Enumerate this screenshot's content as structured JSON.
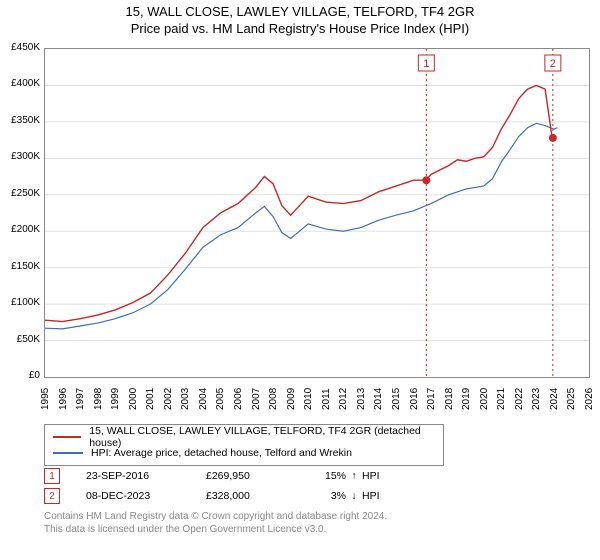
{
  "title_line1": "15, WALL CLOSE, LAWLEY VILLAGE, TELFORD, TF4 2GR",
  "title_line2": "Price paid vs. HM Land Registry's House Price Index (HPI)",
  "chart": {
    "type": "line",
    "background_color": "#ffffff",
    "grid_color": "#e0e0e0",
    "border_color": "#888888",
    "x_years": [
      1995,
      1996,
      1997,
      1998,
      1999,
      2000,
      2001,
      2002,
      2003,
      2004,
      2005,
      2006,
      2007,
      2008,
      2009,
      2010,
      2011,
      2012,
      2013,
      2014,
      2015,
      2016,
      2017,
      2018,
      2019,
      2020,
      2021,
      2022,
      2023,
      2024,
      2025,
      2026
    ],
    "ylim": [
      0,
      450000
    ],
    "ytick_step": 50000,
    "ytick_labels": [
      "£0",
      "£50K",
      "£100K",
      "£150K",
      "£200K",
      "£250K",
      "£300K",
      "£350K",
      "£400K",
      "£450K"
    ],
    "series": [
      {
        "name": "property",
        "label": "15, WALL CLOSE, LAWLEY VILLAGE, TELFORD, TF4 2GR (detached house)",
        "color": "#c62828",
        "line_width": 1.4,
        "points": [
          [
            1995,
            78000
          ],
          [
            1996,
            76000
          ],
          [
            1997,
            80000
          ],
          [
            1998,
            85000
          ],
          [
            1999,
            92000
          ],
          [
            2000,
            102000
          ],
          [
            2001,
            115000
          ],
          [
            2002,
            140000
          ],
          [
            2003,
            170000
          ],
          [
            2004,
            205000
          ],
          [
            2005,
            225000
          ],
          [
            2006,
            238000
          ],
          [
            2007,
            260000
          ],
          [
            2007.5,
            275000
          ],
          [
            2008,
            265000
          ],
          [
            2008.5,
            235000
          ],
          [
            2009,
            222000
          ],
          [
            2009.5,
            235000
          ],
          [
            2010,
            248000
          ],
          [
            2011,
            240000
          ],
          [
            2012,
            238000
          ],
          [
            2013,
            242000
          ],
          [
            2014,
            254000
          ],
          [
            2015,
            262000
          ],
          [
            2016,
            270000
          ],
          [
            2016.7,
            269950
          ],
          [
            2017,
            278000
          ],
          [
            2018,
            290000
          ],
          [
            2018.5,
            298000
          ],
          [
            2019,
            296000
          ],
          [
            2019.5,
            300000
          ],
          [
            2020,
            302000
          ],
          [
            2020.5,
            315000
          ],
          [
            2021,
            340000
          ],
          [
            2021.5,
            360000
          ],
          [
            2022,
            382000
          ],
          [
            2022.5,
            395000
          ],
          [
            2023,
            400000
          ],
          [
            2023.5,
            395000
          ],
          [
            2023.9,
            328000
          ],
          [
            2024.1,
            330000
          ]
        ]
      },
      {
        "name": "hpi",
        "label": "HPI: Average price, detached house, Telford and Wrekin",
        "color": "#3f6fb5",
        "line_width": 1.2,
        "points": [
          [
            1995,
            67000
          ],
          [
            1996,
            66000
          ],
          [
            1997,
            70000
          ],
          [
            1998,
            74000
          ],
          [
            1999,
            80000
          ],
          [
            2000,
            88000
          ],
          [
            2001,
            100000
          ],
          [
            2002,
            120000
          ],
          [
            2003,
            148000
          ],
          [
            2004,
            178000
          ],
          [
            2005,
            195000
          ],
          [
            2006,
            205000
          ],
          [
            2007,
            225000
          ],
          [
            2007.5,
            234000
          ],
          [
            2008,
            220000
          ],
          [
            2008.5,
            198000
          ],
          [
            2009,
            190000
          ],
          [
            2009.5,
            200000
          ],
          [
            2010,
            210000
          ],
          [
            2011,
            203000
          ],
          [
            2012,
            200000
          ],
          [
            2013,
            205000
          ],
          [
            2014,
            215000
          ],
          [
            2015,
            222000
          ],
          [
            2016,
            228000
          ],
          [
            2017,
            238000
          ],
          [
            2018,
            250000
          ],
          [
            2019,
            258000
          ],
          [
            2020,
            262000
          ],
          [
            2020.5,
            272000
          ],
          [
            2021,
            295000
          ],
          [
            2021.5,
            312000
          ],
          [
            2022,
            330000
          ],
          [
            2022.5,
            342000
          ],
          [
            2023,
            348000
          ],
          [
            2023.5,
            345000
          ],
          [
            2024,
            340000
          ],
          [
            2024.2,
            342000
          ]
        ]
      }
    ],
    "markers": [
      {
        "index": 1,
        "x": 2016.73,
        "y": 269950
      },
      {
        "index": 2,
        "x": 2023.94,
        "y": 328000
      }
    ]
  },
  "points_table": {
    "rows": [
      {
        "index": "1",
        "date": "23-SEP-2016",
        "price": "£269,950",
        "pct": "15%",
        "arrow": "↑",
        "label": "HPI"
      },
      {
        "index": "2",
        "date": "08-DEC-2023",
        "price": "£328,000",
        "pct": "3%",
        "arrow": "↓",
        "label": "HPI"
      }
    ]
  },
  "attribution": {
    "line1": "Contains HM Land Registry data © Crown copyright and database right 2024.",
    "line2": "This data is licensed under the Open Government Licence v3.0."
  },
  "legend": {
    "series1": "15, WALL CLOSE, LAWLEY VILLAGE, TELFORD, TF4 2GR (detached house)",
    "series2": "HPI: Average price, detached house, Telford and Wrekin"
  }
}
